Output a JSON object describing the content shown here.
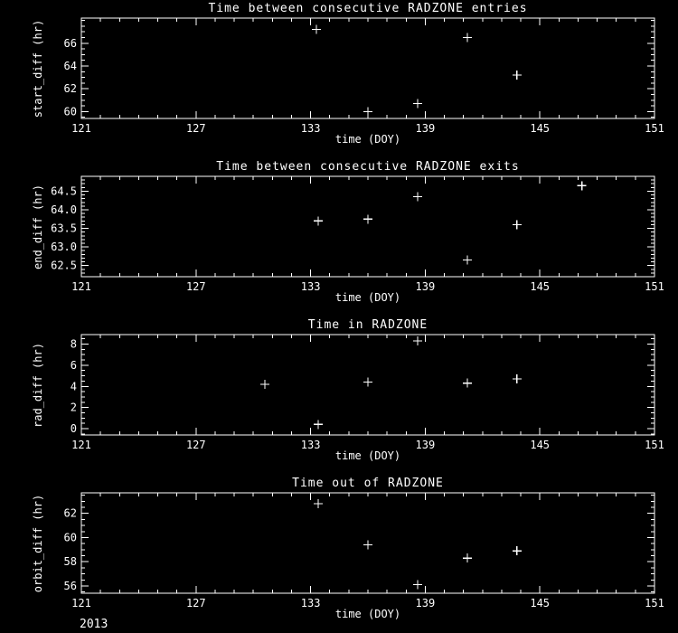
{
  "page": {
    "footer_year": "2013"
  },
  "colors": {
    "background": "#000000",
    "foreground": "#ffffff"
  },
  "chart_data": [
    {
      "type": "scatter",
      "title": "Time between consecutive RADZONE entries",
      "xlabel": "time (DOY)",
      "ylabel": "start_diff (hr)",
      "marker": "+",
      "grid": false,
      "xlim": [
        121,
        151
      ],
      "ylim": [
        59.4,
        68.2
      ],
      "xticks": [
        121,
        127,
        133,
        139,
        145,
        151
      ],
      "xtick_labels": [
        "121",
        "127",
        "133",
        "139",
        "145",
        "151"
      ],
      "yticks": [
        60,
        62,
        64,
        66
      ],
      "ytick_labels": [
        "60",
        "62",
        "64",
        "66"
      ],
      "x_minor_step": 1,
      "y_minor_step": 0.5,
      "points": [
        [
          133.3,
          67.2
        ],
        [
          136.0,
          60.0
        ],
        [
          138.6,
          60.7
        ],
        [
          141.2,
          66.5
        ],
        [
          143.8,
          63.2
        ]
      ]
    },
    {
      "type": "scatter",
      "title": "Time between consecutive RADZONE exits",
      "xlabel": "time (DOY)",
      "ylabel": "end_diff (hr)",
      "marker": "+",
      "grid": false,
      "xlim": [
        121,
        151
      ],
      "ylim": [
        62.2,
        64.9
      ],
      "xticks": [
        121,
        127,
        133,
        139,
        145,
        151
      ],
      "xtick_labels": [
        "121",
        "127",
        "133",
        "139",
        "145",
        "151"
      ],
      "yticks": [
        62.5,
        63.0,
        63.5,
        64.0,
        64.5
      ],
      "ytick_labels": [
        "62.5",
        "63.0",
        "63.5",
        "64.0",
        "64.5"
      ],
      "x_minor_step": 1,
      "y_minor_step": 0.1,
      "points": [
        [
          133.4,
          63.7
        ],
        [
          136.0,
          63.75
        ],
        [
          138.6,
          64.35
        ],
        [
          141.2,
          62.65
        ],
        [
          143.8,
          63.6
        ],
        [
          147.2,
          64.65
        ]
      ]
    },
    {
      "type": "scatter",
      "title": "Time in RADZONE",
      "xlabel": "time (DOY)",
      "ylabel": "rad_diff (hr)",
      "marker": "+",
      "grid": false,
      "xlim": [
        121,
        151
      ],
      "ylim": [
        -0.6,
        8.9
      ],
      "xticks": [
        121,
        127,
        133,
        139,
        145,
        151
      ],
      "xtick_labels": [
        "121",
        "127",
        "133",
        "139",
        "145",
        "151"
      ],
      "yticks": [
        0,
        2,
        4,
        6,
        8
      ],
      "ytick_labels": [
        "0",
        "2",
        "4",
        "6",
        "8"
      ],
      "x_minor_step": 1,
      "y_minor_step": 0.5,
      "points": [
        [
          130.6,
          4.2
        ],
        [
          133.4,
          0.4
        ],
        [
          136.0,
          4.4
        ],
        [
          138.6,
          8.3
        ],
        [
          141.2,
          4.3
        ],
        [
          143.8,
          4.7
        ]
      ]
    },
    {
      "type": "scatter",
      "title": "Time out of RADZONE",
      "xlabel": "time (DOY)",
      "ylabel": "orbit_diff (hr)",
      "marker": "+",
      "grid": false,
      "xlim": [
        121,
        151
      ],
      "ylim": [
        55.4,
        63.7
      ],
      "xticks": [
        121,
        127,
        133,
        139,
        145,
        151
      ],
      "xtick_labels": [
        "121",
        "127",
        "133",
        "139",
        "145",
        "151"
      ],
      "yticks": [
        56,
        58,
        60,
        62
      ],
      "ytick_labels": [
        "56",
        "58",
        "60",
        "62"
      ],
      "x_minor_step": 1,
      "y_minor_step": 0.5,
      "points": [
        [
          133.4,
          62.8
        ],
        [
          136.0,
          59.4
        ],
        [
          138.6,
          56.1
        ],
        [
          141.2,
          58.3
        ],
        [
          143.8,
          58.9
        ]
      ]
    }
  ]
}
